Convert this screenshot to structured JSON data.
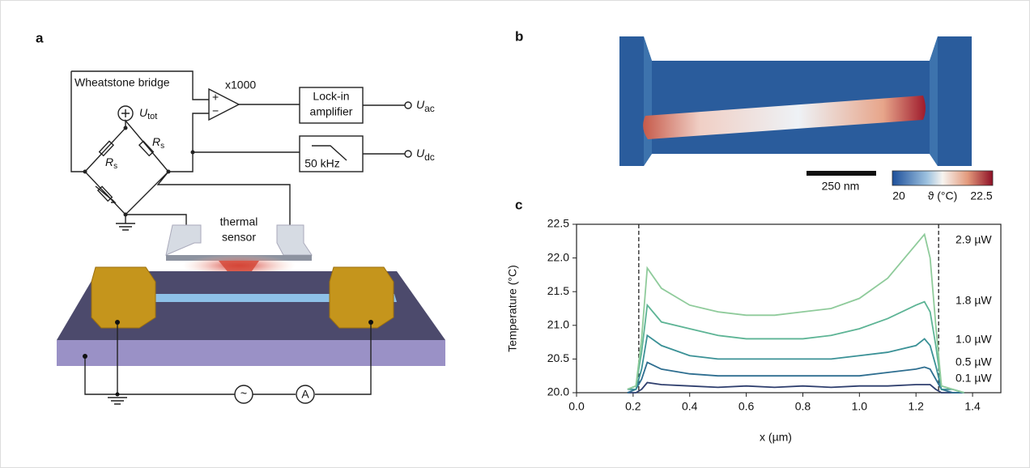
{
  "panels": {
    "a": "a",
    "b": "b",
    "c": "c"
  },
  "circuit": {
    "bridge": "Wheatstone bridge",
    "gain": "x1000",
    "plus": "+",
    "minus": "−",
    "lockin_1": "Lock-in",
    "lockin_2": "amplifier",
    "lowpass": "50 kHz",
    "u_tot": {
      "main": "U",
      "sub": "tot"
    },
    "r_left": {
      "main": "R",
      "sub": "s"
    },
    "r_right": {
      "main": "R",
      "sub": "s"
    },
    "u_ac": {
      "main": "U",
      "sub": "ac"
    },
    "u_dc": {
      "main": "U",
      "sub": "dc"
    },
    "sensor_1": "thermal",
    "sensor_2": "sensor",
    "source": "~",
    "ammeter": "A"
  },
  "image": {
    "scale_bar": "250 nm",
    "colorbar": {
      "min": 20,
      "label": "ϑ (°C)",
      "max": 22.5
    }
  },
  "chart_data": {
    "type": "line",
    "x_label": "x (µm)",
    "y_label": "Temperature (°C)",
    "x": [
      0.18,
      0.21,
      0.23,
      0.25,
      0.3,
      0.4,
      0.5,
      0.6,
      0.7,
      0.8,
      0.9,
      1.0,
      1.1,
      1.2,
      1.23,
      1.25,
      1.27,
      1.29,
      1.33,
      1.37
    ],
    "series": [
      {
        "name": "2.9 µW",
        "color": "#8fcb9b",
        "values": [
          20.05,
          20.1,
          20.8,
          21.85,
          21.55,
          21.3,
          21.2,
          21.15,
          21.15,
          21.2,
          21.25,
          21.4,
          21.7,
          22.2,
          22.35,
          22.0,
          21.0,
          20.1,
          20.05,
          20.0
        ]
      },
      {
        "name": "1.8 µW",
        "color": "#5db495",
        "values": [
          20.05,
          20.1,
          20.6,
          21.3,
          21.05,
          20.95,
          20.85,
          20.8,
          20.8,
          20.8,
          20.85,
          20.95,
          21.1,
          21.3,
          21.35,
          21.2,
          20.7,
          20.1,
          20.05,
          20.0
        ]
      },
      {
        "name": "1.0 µW",
        "color": "#3a9196",
        "values": [
          20.05,
          20.05,
          20.35,
          20.85,
          20.7,
          20.55,
          20.5,
          20.5,
          20.5,
          20.5,
          20.5,
          20.55,
          20.6,
          20.7,
          20.8,
          20.7,
          20.4,
          20.05,
          20.05,
          20.0
        ]
      },
      {
        "name": "0.5 µW",
        "color": "#2e6e90",
        "values": [
          20.0,
          20.05,
          20.2,
          20.45,
          20.35,
          20.28,
          20.25,
          20.25,
          20.25,
          20.25,
          20.25,
          20.25,
          20.3,
          20.35,
          20.38,
          20.35,
          20.2,
          20.05,
          20.0,
          20.0
        ]
      },
      {
        "name": "0.1 µW",
        "color": "#2f3f6e",
        "values": [
          20.0,
          20.0,
          20.05,
          20.15,
          20.12,
          20.1,
          20.08,
          20.1,
          20.08,
          20.1,
          20.08,
          20.1,
          20.1,
          20.12,
          20.12,
          20.12,
          20.05,
          20.0,
          20.0,
          20.0
        ]
      }
    ],
    "vlines": [
      0.22,
      1.28
    ],
    "xlim": [
      0,
      1.5
    ],
    "ylim": [
      20,
      22.5
    ],
    "xticks": [
      {
        "value": 0,
        "label": "0.0"
      },
      0.2,
      0.4,
      0.6,
      0.8,
      {
        "value": 1,
        "label": "1.0"
      },
      1.2,
      1.4
    ],
    "yticks": [
      {
        "value": 20,
        "label": "20.0"
      },
      20.5,
      {
        "value": 21,
        "label": "21.0"
      },
      21.5,
      {
        "value": 22,
        "label": "22.0"
      },
      22.5
    ],
    "grid": false
  }
}
